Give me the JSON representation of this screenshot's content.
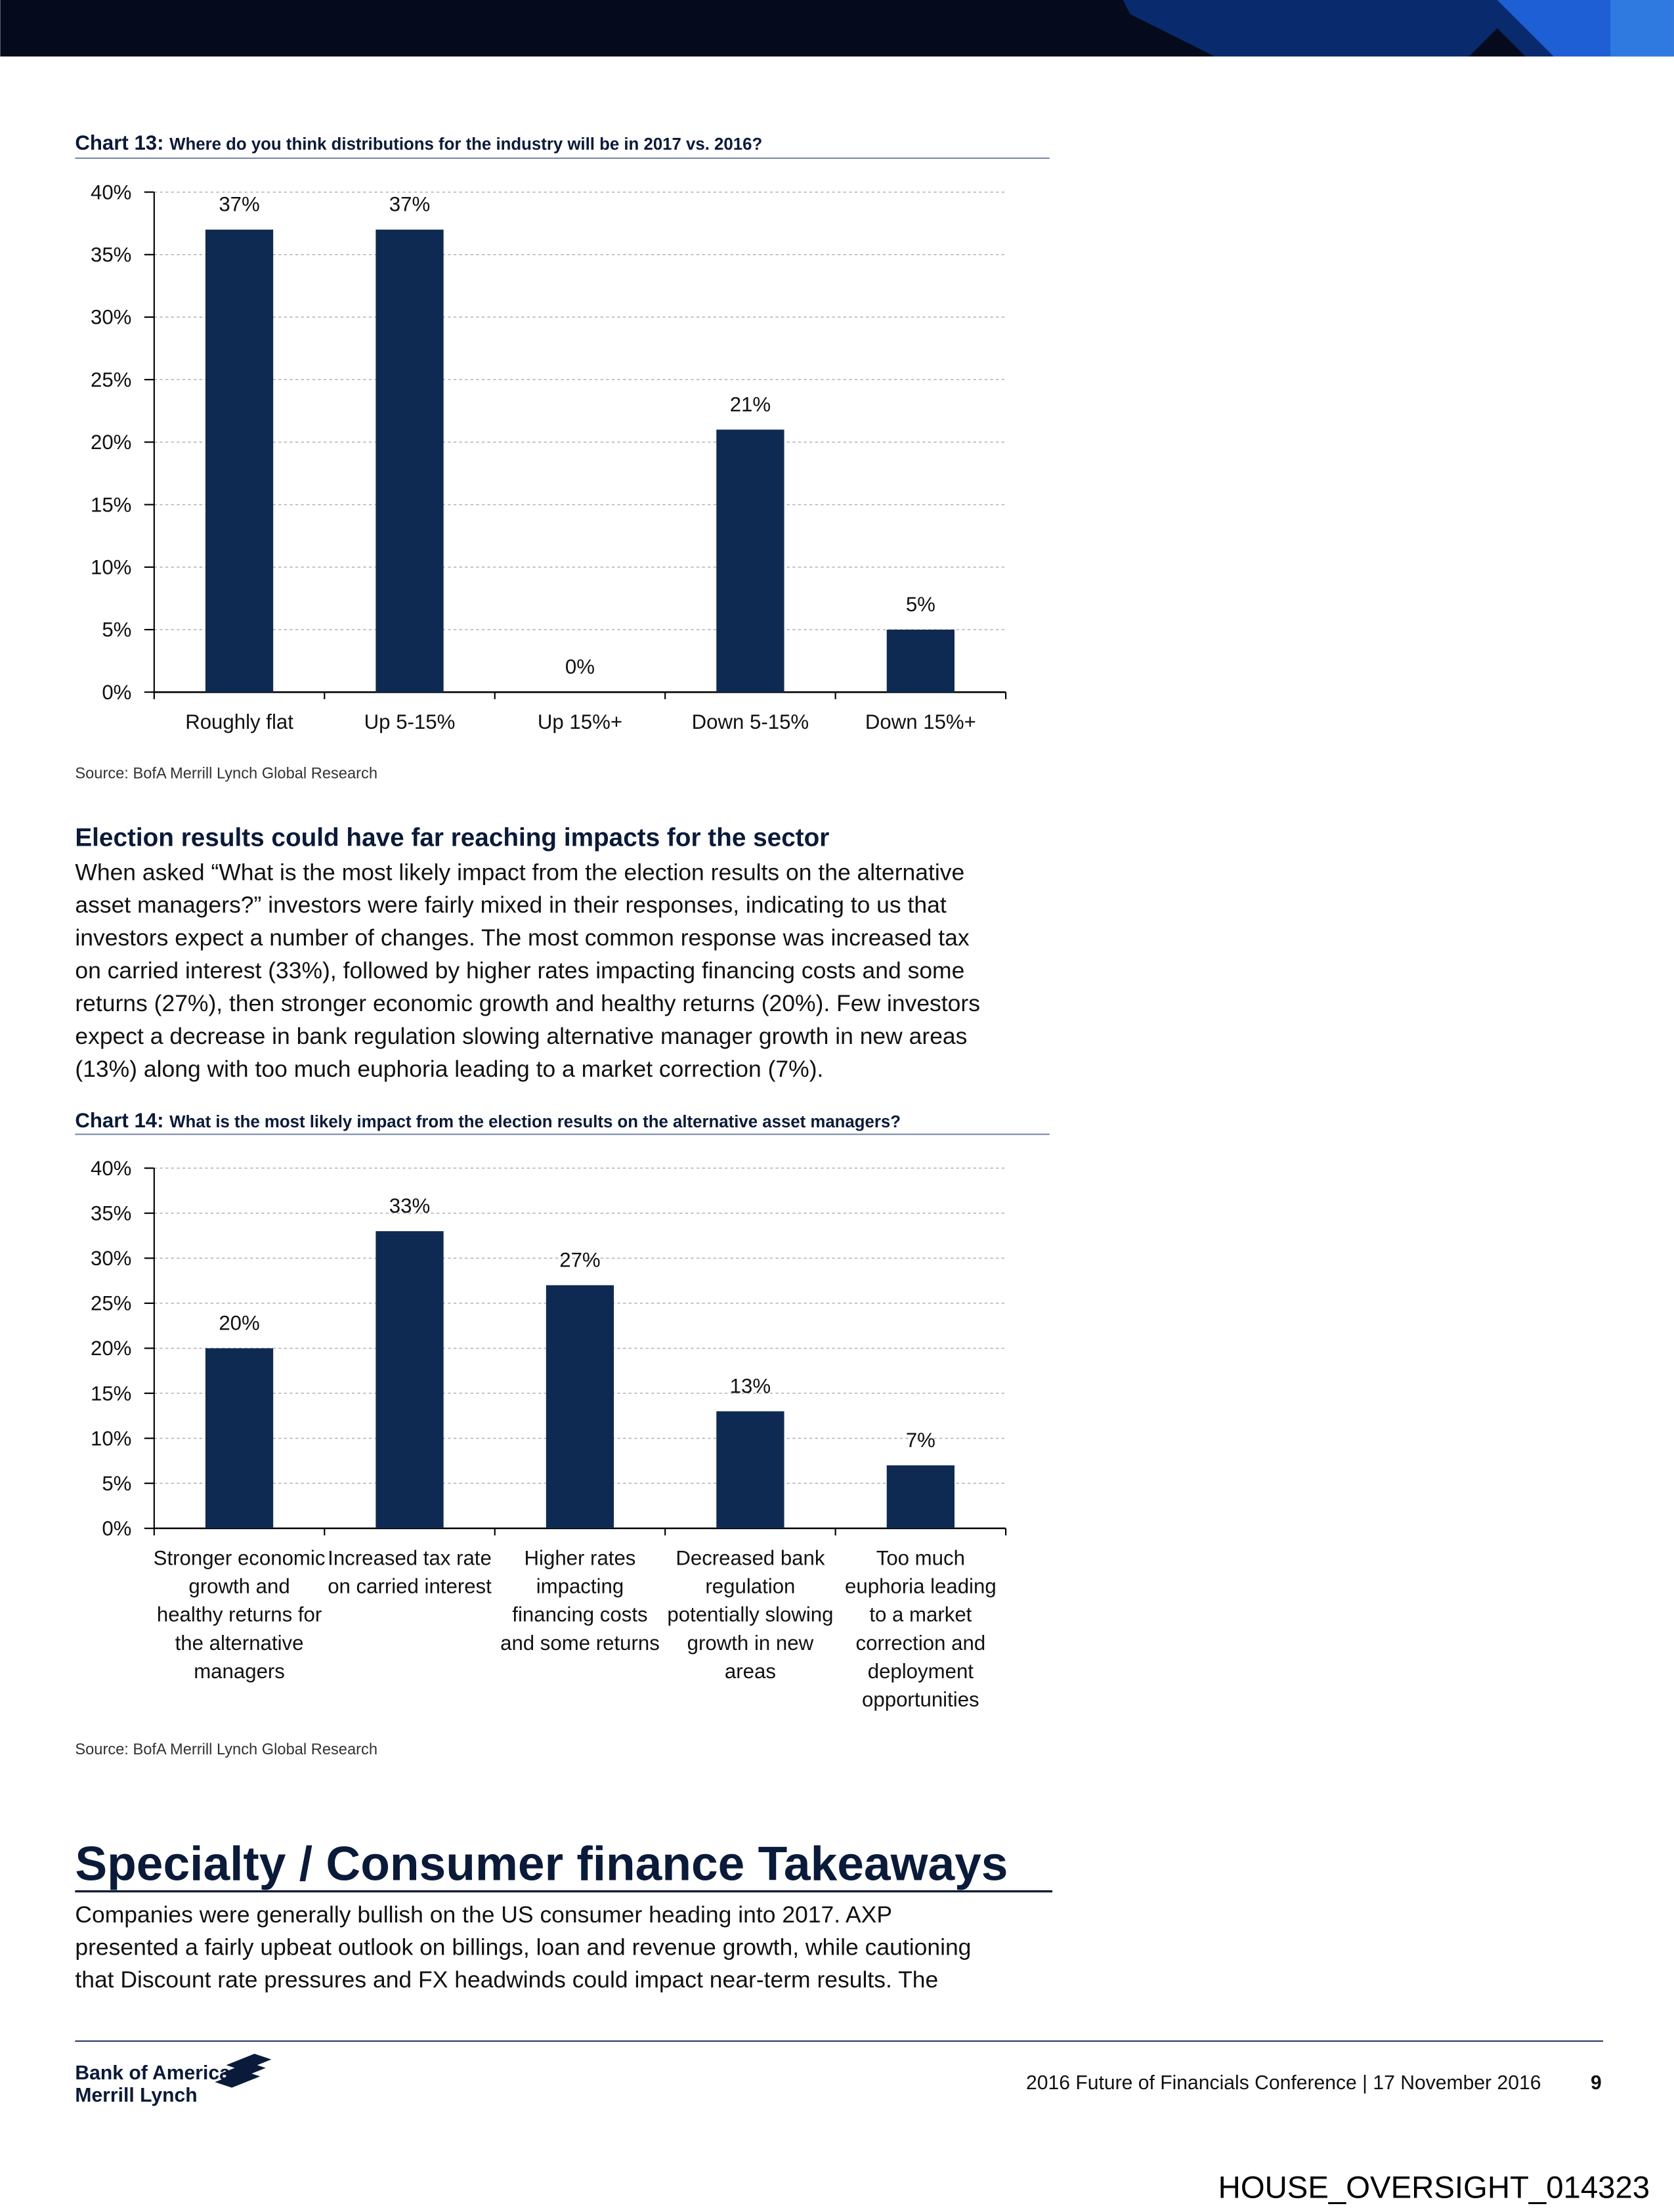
{
  "chart_data": [
    {
      "type": "bar",
      "label": "Chart 13:",
      "title": "Where do you think distributions for the industry will be in 2017 vs. 2016?",
      "categories": [
        [
          "Roughly flat"
        ],
        [
          "Up 5-15%"
        ],
        [
          "Up 15%+"
        ],
        [
          "Down 5-15%"
        ],
        [
          "Down 15%+"
        ]
      ],
      "values": [
        37,
        37,
        0,
        21,
        5
      ],
      "value_labels": [
        "37%",
        "37%",
        "0%",
        "21%",
        "5%"
      ],
      "color": "#0f2a52",
      "ylim": [
        0,
        40
      ],
      "yticks": [
        {
          "value": 0,
          "label": "0%"
        },
        {
          "value": 5,
          "label": "5%"
        },
        {
          "value": 10,
          "label": "10%"
        },
        {
          "value": 15,
          "label": "15%"
        },
        {
          "value": 20,
          "label": "20%"
        },
        {
          "value": 25,
          "label": "25%"
        },
        {
          "value": 30,
          "label": "30%"
        },
        {
          "value": 35,
          "label": "35%"
        },
        {
          "value": 40,
          "label": "40%"
        }
      ],
      "grid": true,
      "source": "Source: BofA Merrill Lynch Global Research"
    },
    {
      "type": "bar",
      "label": "Chart 14:",
      "title": "What is the most likely impact from the election results on the alternative asset managers?",
      "categories": [
        [
          "Stronger economic",
          "growth and",
          "healthy returns for",
          "the alternative",
          "managers"
        ],
        [
          "Increased tax rate",
          "on carried interest"
        ],
        [
          "Higher rates",
          "impacting",
          "financing costs",
          "and some returns"
        ],
        [
          "Decreased bank",
          "regulation",
          "potentially slowing",
          "growth in new",
          "areas"
        ],
        [
          "Too much",
          "euphoria leading",
          "to a market",
          "correction and",
          "deployment",
          "opportunities"
        ]
      ],
      "values": [
        20,
        33,
        27,
        13,
        7
      ],
      "value_labels": [
        "20%",
        "33%",
        "27%",
        "13%",
        "7%"
      ],
      "color": "#0f2a52",
      "ylim": [
        0,
        40
      ],
      "yticks": [
        {
          "value": 0,
          "label": "0%"
        },
        {
          "value": 5,
          "label": "5%"
        },
        {
          "value": 10,
          "label": "10%"
        },
        {
          "value": 15,
          "label": "15%"
        },
        {
          "value": 20,
          "label": "20%"
        },
        {
          "value": 25,
          "label": "25%"
        },
        {
          "value": 30,
          "label": "30%"
        },
        {
          "value": 35,
          "label": "35%"
        },
        {
          "value": 40,
          "label": "40%"
        }
      ],
      "grid": true,
      "source": "Source: BofA Merrill Lynch Global Research"
    }
  ],
  "section": {
    "heading": "Election results could have far reaching impacts for the sector",
    "paragraph": [
      "When asked “What is the most likely impact from the election results on the alternative",
      "asset managers?” investors were fairly mixed in their responses, indicating to us that",
      "investors expect a number of changes. The most common response was increased tax",
      "on carried interest (33%), followed by higher rates impacting financing costs and some",
      "returns (27%), then stronger economic growth and healthy returns (20%). Few investors",
      "expect a decrease in bank regulation slowing alternative manager growth in new areas",
      "(13%) along with too much euphoria leading to a market correction (7%)."
    ]
  },
  "section2": {
    "heading": "Specialty / Consumer finance Takeaways",
    "paragraph": [
      "Companies were generally bullish on the US consumer heading into 2017. AXP",
      "presented a fairly upbeat outlook on billings, loan and revenue growth, while cautioning",
      "that Discount rate pressures and FX headwinds could impact near-term results. The"
    ]
  },
  "footer": {
    "logo": [
      "Bank of America",
      "Merrill Lynch"
    ],
    "text": "2016 Future of Financials Conference | 17 November 2016",
    "page": "9"
  },
  "stamp": "HOUSE_OVERSIGHT_014323"
}
